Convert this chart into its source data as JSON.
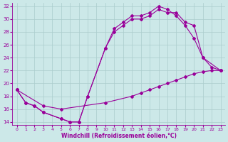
{
  "xlabel": "Windchill (Refroidissement éolien,°C)",
  "bg_color": "#cce8e8",
  "grid_color": "#aacccc",
  "line_color": "#990099",
  "xlim": [
    -0.5,
    23.5
  ],
  "ylim": [
    13.5,
    32.5
  ],
  "xticks": [
    0,
    1,
    2,
    3,
    4,
    5,
    6,
    7,
    8,
    9,
    10,
    11,
    12,
    13,
    14,
    15,
    16,
    17,
    18,
    19,
    20,
    21,
    22,
    23
  ],
  "yticks": [
    14,
    16,
    18,
    20,
    22,
    24,
    26,
    28,
    30,
    32
  ],
  "line1_x": [
    0,
    1,
    2,
    3,
    5,
    6,
    7,
    8,
    10,
    11,
    12,
    13,
    14,
    15,
    16,
    17,
    18,
    19,
    20,
    21,
    22,
    23
  ],
  "line1_y": [
    19,
    17,
    16.5,
    15.5,
    14.5,
    14,
    14,
    18,
    25.5,
    28.5,
    29.5,
    30.5,
    30.5,
    31,
    32,
    31.5,
    30.5,
    29,
    27,
    24,
    22.5,
    22
  ],
  "line2_x": [
    0,
    1,
    2,
    3,
    5,
    6,
    7,
    8,
    10,
    11,
    12,
    13,
    14,
    15,
    16,
    17,
    18,
    19,
    20,
    21,
    23
  ],
  "line2_y": [
    19,
    17,
    16.5,
    15.5,
    14.5,
    14,
    14,
    18,
    25.5,
    28,
    29,
    30,
    30,
    30.5,
    31.5,
    31,
    31,
    29.5,
    29,
    24,
    22
  ],
  "line3_x": [
    0,
    3,
    5,
    10,
    13,
    14,
    15,
    16,
    17,
    18,
    19,
    20,
    21,
    22,
    23
  ],
  "line3_y": [
    19,
    16.5,
    16,
    17,
    18,
    18.5,
    19,
    19.5,
    20,
    20.5,
    21,
    21.5,
    21.8,
    22,
    22
  ]
}
